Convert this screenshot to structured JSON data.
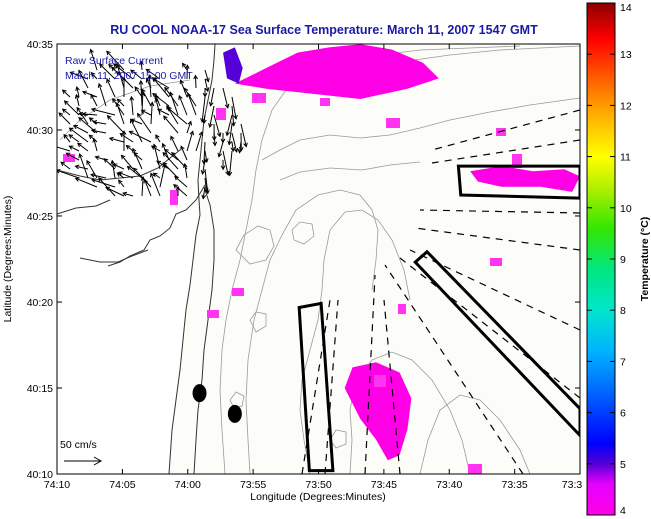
{
  "chart_data": {
    "type": "heatmap",
    "title": "RU COOL  NOAA-17  Sea Surface Temperature:  March 11, 2007 1547 GMT",
    "annotation": [
      "Raw Surface Current",
      "March 11, 2007 15:00 GMT"
    ],
    "xlabel": "Longitude (Degrees:Minutes)",
    "ylabel": "Latitude (Degrees:Minutes)",
    "xlim": [
      -74.1667,
      -73.5
    ],
    "ylim": [
      40.1667,
      40.5833
    ],
    "x_ticks": [
      {
        "value": -74.1667,
        "label": "74:10"
      },
      {
        "value": -74.0833,
        "label": "74:05"
      },
      {
        "value": -74.0,
        "label": "74:00"
      },
      {
        "value": -73.9167,
        "label": "73:55"
      },
      {
        "value": -73.8333,
        "label": "73:50"
      },
      {
        "value": -73.75,
        "label": "73:45"
      },
      {
        "value": -73.6667,
        "label": "73:40"
      },
      {
        "value": -73.5833,
        "label": "73:35"
      },
      {
        "value": -73.5,
        "label": "73:3"
      }
    ],
    "y_ticks": [
      {
        "value": 40.1667,
        "label": "40:10"
      },
      {
        "value": 40.25,
        "label": "40:15"
      },
      {
        "value": 40.3333,
        "label": "40:20"
      },
      {
        "value": 40.4167,
        "label": "40:25"
      },
      {
        "value": 40.5,
        "label": "40:30"
      },
      {
        "value": 40.5833,
        "label": "40:35"
      }
    ],
    "colorbar": {
      "label": "Temperature (°C)",
      "min": 4,
      "max": 14,
      "ticks": [
        "4",
        "5",
        "6",
        "7",
        "8",
        "9",
        "10",
        "11",
        "12",
        "13",
        "14"
      ]
    },
    "scale_label": "50 cm/s",
    "sst_patches": [
      {
        "name": "north-cloud",
        "lon": [
          -73.94,
          -73.9,
          -73.86,
          -73.82,
          -73.78,
          -73.74,
          -73.7,
          -73.68,
          -73.72,
          -73.78,
          -73.84,
          -73.9,
          -73.94
        ],
        "lat": [
          40.545,
          40.56,
          40.575,
          40.58,
          40.583,
          40.578,
          40.565,
          40.55,
          40.54,
          40.53,
          40.535,
          40.54,
          40.545
        ],
        "value": 4.2
      },
      {
        "name": "bay-warm",
        "lon": [
          -73.955,
          -73.94,
          -73.93,
          -73.935,
          -73.95
        ],
        "lat": [
          40.575,
          40.58,
          40.56,
          40.545,
          40.55
        ],
        "value": 5.3
      },
      {
        "name": "south-cloud",
        "lon": [
          -73.79,
          -73.76,
          -73.73,
          -73.715,
          -73.72,
          -73.73,
          -73.745,
          -73.76,
          -73.78,
          -73.8
        ],
        "lat": [
          40.27,
          40.275,
          40.265,
          40.24,
          40.21,
          40.185,
          40.18,
          40.2,
          40.22,
          40.25
        ],
        "value": 4.3
      },
      {
        "name": "east-cloud",
        "lon": [
          -73.64,
          -73.6,
          -73.56,
          -73.52,
          -73.5,
          -73.51,
          -73.55,
          -73.6,
          -73.63
        ],
        "lat": [
          40.46,
          40.465,
          40.46,
          40.462,
          40.455,
          40.44,
          40.445,
          40.445,
          40.45
        ],
        "value": 4.4
      }
    ],
    "sample_boxes": [
      {
        "lon": [
          -73.655,
          -73.5,
          -73.5,
          -73.652
        ],
        "lat": [
          40.465,
          40.465,
          40.434,
          40.437
        ]
      },
      {
        "lon": [
          -73.695,
          -73.5,
          -73.5,
          -73.71
        ],
        "lat": [
          40.382,
          40.23,
          40.204,
          40.372
        ]
      },
      {
        "lon": [
          -73.858,
          -73.83,
          -73.815,
          -73.845
        ],
        "lat": [
          40.328,
          40.332,
          40.17,
          40.17
        ]
      }
    ],
    "point_markers": [
      {
        "lon": -73.985,
        "lat": 40.245
      },
      {
        "lon": -73.94,
        "lat": 40.225
      }
    ]
  }
}
